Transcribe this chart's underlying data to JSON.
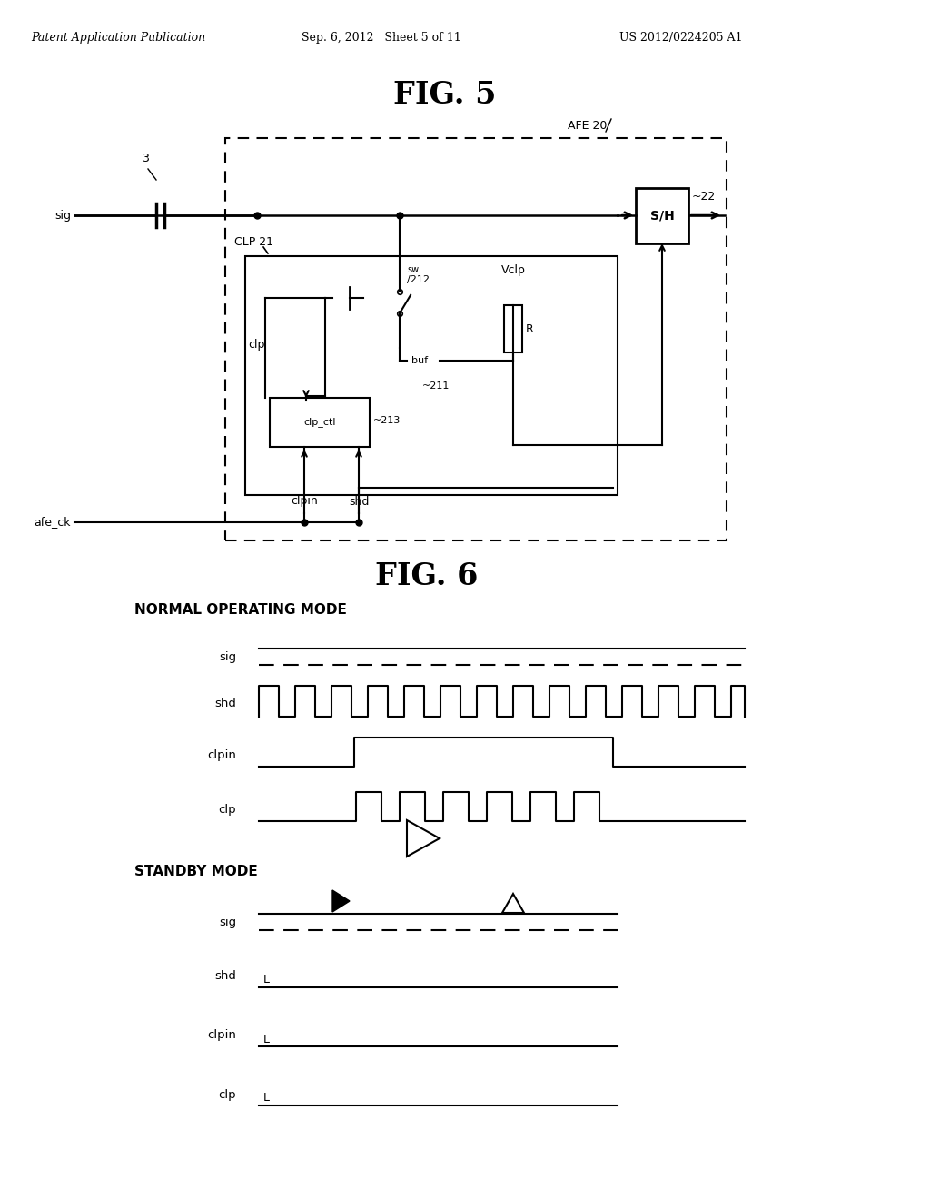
{
  "bg_color": "#ffffff",
  "header_left": "Patent Application Publication",
  "header_mid": "Sep. 6, 2012   Sheet 5 of 11",
  "header_right": "US 2012/0224205 A1",
  "fig5_title": "FIG. 5",
  "fig6_title": "FIG. 6",
  "normal_mode_label": "NORMAL OPERATING MODE",
  "standby_mode_label": "STANDBY MODE"
}
